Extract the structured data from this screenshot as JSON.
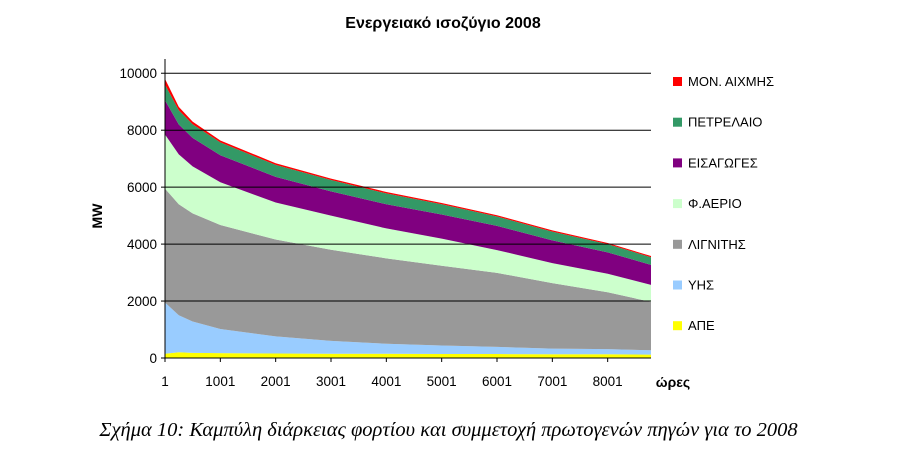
{
  "chart_data": {
    "type": "area",
    "title": "Ενεργειακό ισοζύγιο 2008",
    "xlabel": "ώρες",
    "ylabel": "MW",
    "xlim": [
      1,
      8784
    ],
    "ylim": [
      0,
      10000
    ],
    "x_ticks": [
      "1",
      "1001",
      "2001",
      "3001",
      "4001",
      "5001",
      "6001",
      "7001",
      "8001"
    ],
    "y_ticks": [
      "0",
      "2000",
      "4000",
      "6000",
      "8000",
      "10000"
    ],
    "grid": true,
    "legend_position": "right",
    "x": [
      1,
      250,
      500,
      1001,
      2001,
      3001,
      4001,
      5001,
      6001,
      7001,
      8001,
      8784
    ],
    "series": [
      {
        "name": "ΑΠΕ",
        "color": "#ffff00",
        "values": [
          150,
          200,
          180,
          170,
          160,
          150,
          150,
          140,
          140,
          130,
          130,
          120
        ]
      },
      {
        "name": "ΥΗΣ",
        "color": "#99ccff",
        "values": [
          1800,
          1300,
          1100,
          850,
          600,
          450,
          350,
          300,
          250,
          200,
          180,
          150
        ]
      },
      {
        "name": "ΛΙΓΝΙΤΗΣ",
        "color": "#999999",
        "values": [
          4000,
          3900,
          3800,
          3650,
          3400,
          3200,
          3000,
          2800,
          2600,
          2300,
          2000,
          1700
        ]
      },
      {
        "name": "Φ.ΑΕΡΙΟ",
        "color": "#ccffcc",
        "values": [
          1900,
          1750,
          1650,
          1500,
          1300,
          1200,
          1050,
          950,
          800,
          700,
          650,
          600
        ]
      },
      {
        "name": "ΕΙΣΑΓΩΓΕΣ",
        "color": "#800080",
        "values": [
          1200,
          1050,
          1000,
          950,
          900,
          850,
          850,
          850,
          850,
          800,
          750,
          700
        ]
      },
      {
        "name": "ΠΕΤΡΕΛΑΙΟ",
        "color": "#339966",
        "values": [
          550,
          500,
          480,
          450,
          420,
          400,
          380,
          360,
          330,
          310,
          290,
          270
        ]
      },
      {
        "name": "ΜΟΝ. ΑΙΧΜΗΣ",
        "color": "#ff0000",
        "values": [
          200,
          120,
          90,
          70,
          60,
          50,
          50,
          45,
          45,
          40,
          40,
          40
        ]
      }
    ]
  },
  "caption": "Σχήμα 10: Καμπύλη διάρκειας φορτίου και συμμετοχή πρωτογενών πηγών για το 2008"
}
